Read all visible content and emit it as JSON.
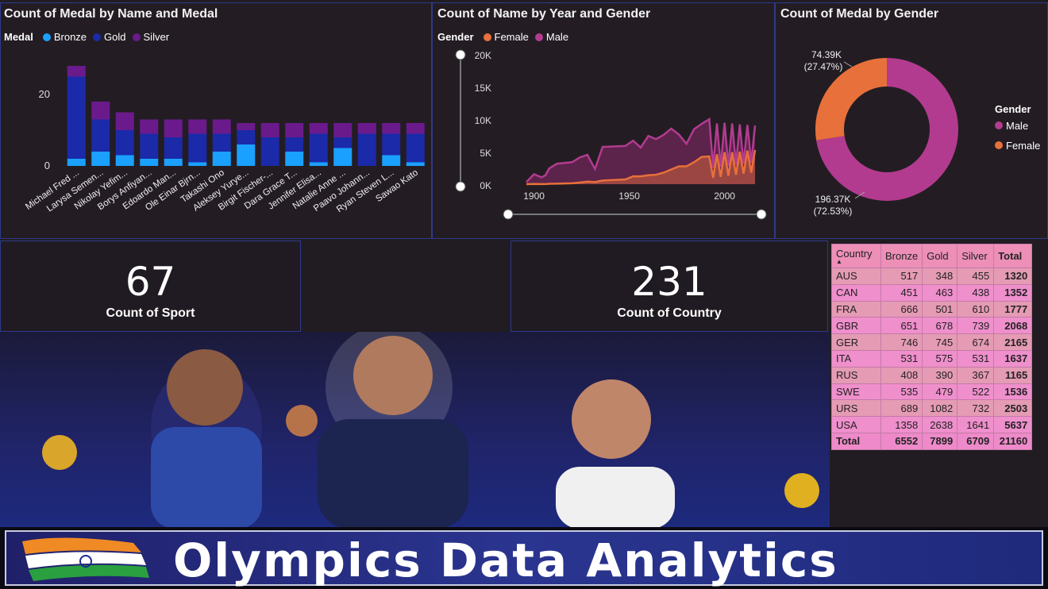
{
  "panels": {
    "bar_title": "Count of Medal by Name and Medal",
    "area_title": "Count of Name by Year and Gender",
    "donut_title": "Count of Medal by Gender"
  },
  "bar_legend": {
    "title": "Medal",
    "items": [
      "Bronze",
      "Gold",
      "Silver"
    ]
  },
  "area_legend": {
    "title": "Gender",
    "items": [
      "Female",
      "Male"
    ]
  },
  "donut_legend": {
    "title": "Gender",
    "items": [
      "Male",
      "Female"
    ]
  },
  "colors": {
    "bronze": "#1aa0ff",
    "gold": "#1a2aa8",
    "silver": "#6b1a8c",
    "female": "#e8703a",
    "male": "#b33b8f"
  },
  "chart_data": [
    {
      "type": "bar",
      "title": "Count of Medal by Name and Medal",
      "categories": [
        "Michael Fred ...",
        "Larysa Semen...",
        "Nikolay Yefim...",
        "Borys Anfiyan...",
        "Edoardo Man...",
        "Ole Einar Bjrn...",
        "Takashi Ono",
        "Aleksey Yurye...",
        "Birgit Fischer-...",
        "Dara Grace T...",
        "Jennifer Elisa...",
        "Natalie Anne ...",
        "Paavo Johann...",
        "Ryan Steven L...",
        "Sawao Kato"
      ],
      "series": [
        {
          "name": "Bronze",
          "values": [
            2,
            4,
            3,
            2,
            2,
            1,
            4,
            6,
            0,
            4,
            1,
            5,
            0,
            3,
            1
          ]
        },
        {
          "name": "Gold",
          "values": [
            23,
            9,
            7,
            7,
            6,
            8,
            5,
            4,
            8,
            4,
            8,
            3,
            9,
            6,
            8
          ]
        },
        {
          "name": "Silver",
          "values": [
            3,
            5,
            5,
            4,
            5,
            4,
            4,
            2,
            4,
            4,
            3,
            4,
            3,
            3,
            3
          ]
        }
      ],
      "yticks": [
        0,
        20
      ],
      "ylim": [
        0,
        30
      ]
    },
    {
      "type": "area",
      "title": "Count of Name by Year and Gender",
      "xticks": [
        1900,
        1950,
        2000
      ],
      "yticks": [
        "0K",
        "5K",
        "10K",
        "15K",
        "20K"
      ],
      "xlim": [
        1896,
        2016
      ],
      "ylim": [
        0,
        20000
      ],
      "x": [
        1896,
        1900,
        1904,
        1906,
        1908,
        1912,
        1920,
        1924,
        1928,
        1932,
        1936,
        1948,
        1952,
        1956,
        1960,
        1964,
        1968,
        1972,
        1976,
        1980,
        1984,
        1988,
        1992,
        1994,
        1996,
        1998,
        2000,
        2002,
        2004,
        2006,
        2008,
        2010,
        2012,
        2014,
        2016
      ],
      "series": [
        {
          "name": "Female",
          "values": [
            0,
            30,
            20,
            10,
            70,
            100,
            170,
            300,
            500,
            400,
            700,
            900,
            1500,
            1500,
            1700,
            1800,
            2200,
            2800,
            3400,
            3400,
            4200,
            5200,
            5300,
            1200,
            5700,
            1400,
            6100,
            1600,
            6100,
            1800,
            6200,
            2000,
            6400,
            2200,
            6500
          ]
        },
        {
          "name": "Male",
          "values": [
            400,
            1900,
            1300,
            1700,
            3000,
            3900,
            4200,
            5100,
            5600,
            2900,
            7100,
            7300,
            8300,
            7000,
            9200,
            8600,
            9400,
            10600,
            9500,
            7700,
            10500,
            11500,
            12400,
            3100,
            11600,
            3300,
            11700,
            3500,
            11600,
            3700,
            11400,
            3900,
            11300,
            4100,
            11200
          ]
        }
      ]
    },
    {
      "type": "pie",
      "title": "Count of Medal by Gender",
      "categories": [
        "Male",
        "Female"
      ],
      "values": [
        196.37,
        74.39
      ],
      "labels": [
        "196.37K (72.53%)",
        "74.39K (27.47%)"
      ]
    }
  ],
  "kpi_sport": {
    "value": "67",
    "label": "Count of Sport"
  },
  "kpi_country": {
    "value": "231",
    "label": "Count of Country"
  },
  "table": {
    "headers": [
      "Country",
      "Bronze",
      "Gold",
      "Silver",
      "Total"
    ],
    "rows": [
      [
        "AUS",
        "517",
        "348",
        "455",
        "1320"
      ],
      [
        "CAN",
        "451",
        "463",
        "438",
        "1352"
      ],
      [
        "FRA",
        "666",
        "501",
        "610",
        "1777"
      ],
      [
        "GBR",
        "651",
        "678",
        "739",
        "2068"
      ],
      [
        "GER",
        "746",
        "745",
        "674",
        "2165"
      ],
      [
        "ITA",
        "531",
        "575",
        "531",
        "1637"
      ],
      [
        "RUS",
        "408",
        "390",
        "367",
        "1165"
      ],
      [
        "SWE",
        "535",
        "479",
        "522",
        "1536"
      ],
      [
        "URS",
        "689",
        "1082",
        "732",
        "2503"
      ],
      [
        "USA",
        "1358",
        "2638",
        "1641",
        "5637"
      ]
    ],
    "total": [
      "Total",
      "6552",
      "7899",
      "6709",
      "21160"
    ]
  },
  "banner": {
    "title": "Olympics Data Analytics"
  }
}
